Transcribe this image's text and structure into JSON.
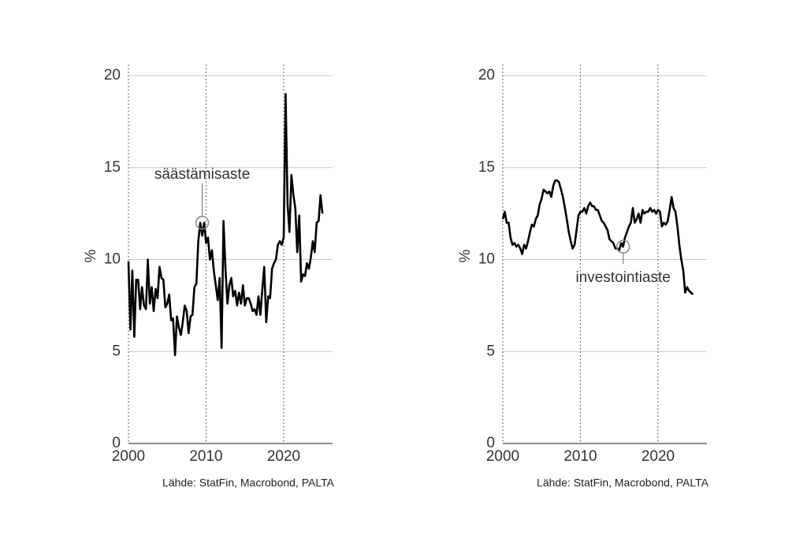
{
  "chart_data": [
    {
      "type": "line",
      "ylabel": "%",
      "source": "Lähde: StatFin, Macrobond, PALTA",
      "color": "#000000",
      "xlim": [
        2000,
        2026.3
      ],
      "ylim": [
        0,
        20.6
      ],
      "xticks": [
        2000,
        2010,
        2020
      ],
      "yticks": [
        0,
        5,
        10,
        15,
        20
      ],
      "grid": true,
      "annotation": {
        "text": "säästämisaste",
        "x": 2009.5,
        "y": 12.0
      },
      "x": [
        2000,
        2000.25,
        2000.5,
        2000.75,
        2001,
        2001.25,
        2001.5,
        2001.75,
        2002,
        2002.25,
        2002.5,
        2002.75,
        2003,
        2003.25,
        2003.5,
        2003.75,
        2004,
        2004.25,
        2004.5,
        2004.75,
        2005,
        2005.25,
        2005.5,
        2005.75,
        2006,
        2006.25,
        2006.5,
        2006.75,
        2007,
        2007.25,
        2007.5,
        2007.75,
        2008,
        2008.25,
        2008.5,
        2008.75,
        2009,
        2009.25,
        2009.5,
        2009.75,
        2010,
        2010.25,
        2010.5,
        2010.75,
        2011,
        2011.25,
        2011.5,
        2011.75,
        2012,
        2012.25,
        2012.5,
        2012.75,
        2013,
        2013.25,
        2013.5,
        2013.75,
        2014,
        2014.25,
        2014.5,
        2014.75,
        2015,
        2015.25,
        2015.5,
        2015.75,
        2016,
        2016.25,
        2016.5,
        2016.75,
        2017,
        2017.25,
        2017.5,
        2017.75,
        2018,
        2018.25,
        2018.5,
        2018.75,
        2019,
        2019.25,
        2019.5,
        2019.75,
        2020,
        2020.25,
        2020.5,
        2020.75,
        2021,
        2021.25,
        2021.5,
        2021.75,
        2022,
        2022.25,
        2022.5,
        2022.75,
        2023,
        2023.25,
        2023.5,
        2023.75,
        2024,
        2024.25,
        2024.5,
        2024.75,
        2025
      ],
      "values": [
        9.9,
        6.2,
        9.4,
        5.8,
        8.9,
        8.9,
        7.3,
        8.5,
        7.5,
        7.3,
        10.0,
        7.6,
        8.5,
        7.2,
        8.4,
        7.9,
        9.6,
        9.0,
        8.9,
        7.4,
        7.6,
        8.1,
        6.7,
        6.8,
        4.8,
        6.9,
        6.3,
        5.9,
        6.6,
        7.5,
        7.2,
        6.0,
        6.9,
        7.0,
        8.5,
        8.7,
        11.0,
        12.0,
        11.3,
        12.0,
        10.9,
        11.2,
        10.0,
        10.5,
        9.4,
        8.6,
        7.8,
        9.0,
        5.2,
        12.1,
        9.5,
        7.6,
        8.6,
        9.0,
        8.0,
        8.3,
        7.5,
        8.2,
        7.6,
        8.6,
        7.5,
        7.9,
        7.9,
        7.6,
        7.2,
        7.3,
        7.0,
        8.0,
        7.0,
        8.4,
        9.6,
        6.6,
        8.0,
        7.9,
        9.5,
        9.8,
        10.0,
        10.8,
        11.0,
        10.8,
        11.2,
        19.0,
        13.0,
        11.5,
        14.6,
        13.5,
        12.8,
        10.4,
        12.4,
        8.8,
        9.2,
        9.1,
        9.8,
        9.5,
        10.1,
        11.0,
        10.4,
        12.0,
        12.1,
        13.5,
        12.5
      ]
    },
    {
      "type": "line",
      "ylabel": "%",
      "source": "Lähde: StatFin, Macrobond, PALTA",
      "color": "#000000",
      "xlim": [
        2000,
        2026.3
      ],
      "ylim": [
        0,
        20.6
      ],
      "xticks": [
        2000,
        2010,
        2020
      ],
      "yticks": [
        0,
        5,
        10,
        15,
        20
      ],
      "grid": true,
      "annotation": {
        "text": "investointiaste",
        "x": 2015.5,
        "y": 10.7
      },
      "x": [
        2000,
        2000.25,
        2000.5,
        2000.75,
        2001,
        2001.25,
        2001.5,
        2001.75,
        2002,
        2002.25,
        2002.5,
        2002.75,
        2003,
        2003.25,
        2003.5,
        2003.75,
        2004,
        2004.25,
        2004.5,
        2004.75,
        2005,
        2005.25,
        2005.5,
        2005.75,
        2006,
        2006.25,
        2006.5,
        2006.75,
        2007,
        2007.25,
        2007.5,
        2007.75,
        2008,
        2008.25,
        2008.5,
        2008.75,
        2009,
        2009.25,
        2009.5,
        2009.75,
        2010,
        2010.25,
        2010.5,
        2010.75,
        2011,
        2011.25,
        2011.5,
        2011.75,
        2012,
        2012.25,
        2012.5,
        2012.75,
        2013,
        2013.25,
        2013.5,
        2013.75,
        2014,
        2014.25,
        2014.5,
        2014.75,
        2015,
        2015.25,
        2015.5,
        2015.75,
        2016,
        2016.25,
        2016.5,
        2016.75,
        2017,
        2017.25,
        2017.5,
        2017.75,
        2018,
        2018.25,
        2018.5,
        2018.75,
        2019,
        2019.25,
        2019.5,
        2019.75,
        2020,
        2020.25,
        2020.5,
        2020.75,
        2021,
        2021.25,
        2021.5,
        2021.75,
        2022,
        2022.25,
        2022.5,
        2022.75,
        2023,
        2023.25,
        2023.5,
        2023.75,
        2024,
        2024.25,
        2024.5
      ],
      "values": [
        12.2,
        12.6,
        12.0,
        12.0,
        11.2,
        10.8,
        10.9,
        10.7,
        10.8,
        10.6,
        10.3,
        10.8,
        10.6,
        11.0,
        11.5,
        11.9,
        11.8,
        12.2,
        12.4,
        13.0,
        13.3,
        13.8,
        13.7,
        13.6,
        13.7,
        13.4,
        14.0,
        14.3,
        14.3,
        14.2,
        13.8,
        13.4,
        12.8,
        12.2,
        11.5,
        11.0,
        10.6,
        10.8,
        11.6,
        12.4,
        12.6,
        12.6,
        12.8,
        12.5,
        12.9,
        13.1,
        12.9,
        12.9,
        12.7,
        12.7,
        12.4,
        12.1,
        12.0,
        11.8,
        11.6,
        11.1,
        11.0,
        10.9,
        10.6,
        10.6,
        10.5,
        10.9,
        10.7,
        11.2,
        11.5,
        11.8,
        12.0,
        12.8,
        12.0,
        12.2,
        12.5,
        12.0,
        12.7,
        12.5,
        12.6,
        12.6,
        12.8,
        12.6,
        12.7,
        12.5,
        12.7,
        12.6,
        11.8,
        12.0,
        11.9,
        12.1,
        12.7,
        13.4,
        12.8,
        12.6,
        11.8,
        10.8,
        10.0,
        9.4,
        8.2,
        8.5,
        8.3,
        8.2,
        8.1
      ]
    }
  ]
}
